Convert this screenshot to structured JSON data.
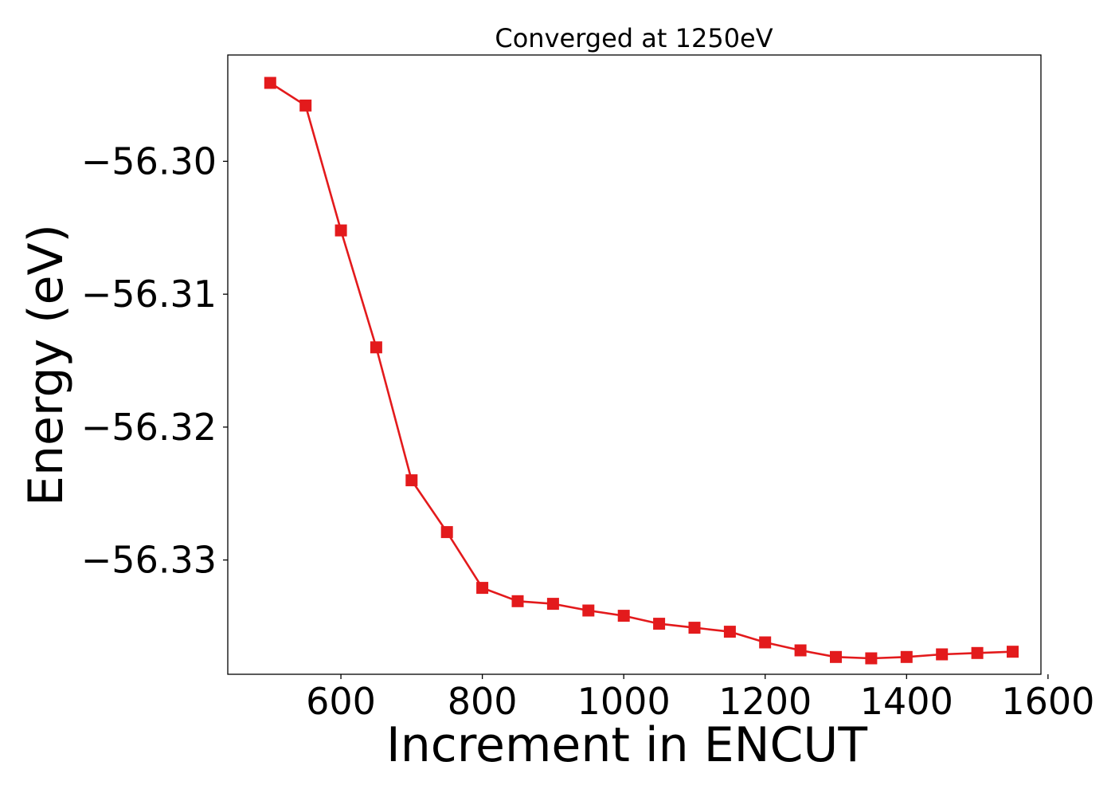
{
  "chart_data": {
    "type": "line",
    "title": "Converged at 1250eV",
    "xlabel": "Increment in ENCUT",
    "ylabel": "Energy (eV)",
    "xlim": [
      440,
      1590
    ],
    "ylim": [
      -56.3386,
      -56.292
    ],
    "x_ticks": [
      600,
      800,
      1000,
      1200,
      1400,
      1600
    ],
    "x_tick_labels": [
      "600",
      "800",
      "1000",
      "1200",
      "1400",
      "1600"
    ],
    "y_ticks": [
      -56.3,
      -56.31,
      -56.32,
      -56.33
    ],
    "y_tick_labels": [
      "−56.30",
      "−56.31",
      "−56.32",
      "−56.33"
    ],
    "grid": false,
    "marker": "square",
    "colors": {
      "series": "#e31a1c",
      "axes": "#000000"
    },
    "series": [
      {
        "x": [
          500,
          550,
          600,
          650,
          700,
          750,
          800,
          850,
          900,
          950,
          1000,
          1050,
          1100,
          1150,
          1200,
          1250,
          1300,
          1350,
          1400,
          1450,
          1500,
          1550
        ],
        "y": [
          -56.2941,
          -56.2958,
          -56.3052,
          -56.314,
          -56.324,
          -56.3279,
          -56.3321,
          -56.3331,
          -56.3333,
          -56.3338,
          -56.3342,
          -56.3348,
          -56.3351,
          -56.3354,
          -56.3362,
          -56.3368,
          -56.3373,
          -56.3374,
          -56.3373,
          -56.3371,
          -56.337,
          -56.3369
        ]
      }
    ]
  }
}
